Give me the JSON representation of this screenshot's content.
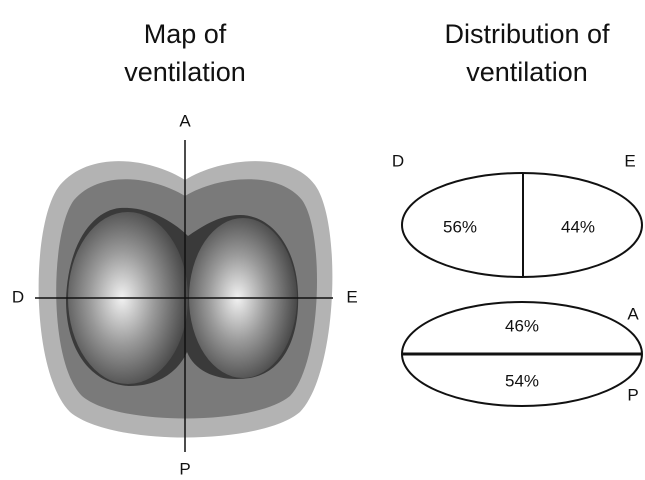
{
  "map": {
    "title": [
      "Map of",
      "ventilation"
    ],
    "labels": {
      "top": "A",
      "bottom": "P",
      "left": "D",
      "right": "E"
    }
  },
  "distribution": {
    "title": [
      "Distribution of",
      "ventilation"
    ],
    "lateral": {
      "left_label": "D",
      "right_label": "E",
      "left_value": "56%",
      "right_value": "44%"
    },
    "vertical": {
      "top_label": "A",
      "bottom_label": "P",
      "top_value": "46%",
      "bottom_value": "54%"
    }
  }
}
